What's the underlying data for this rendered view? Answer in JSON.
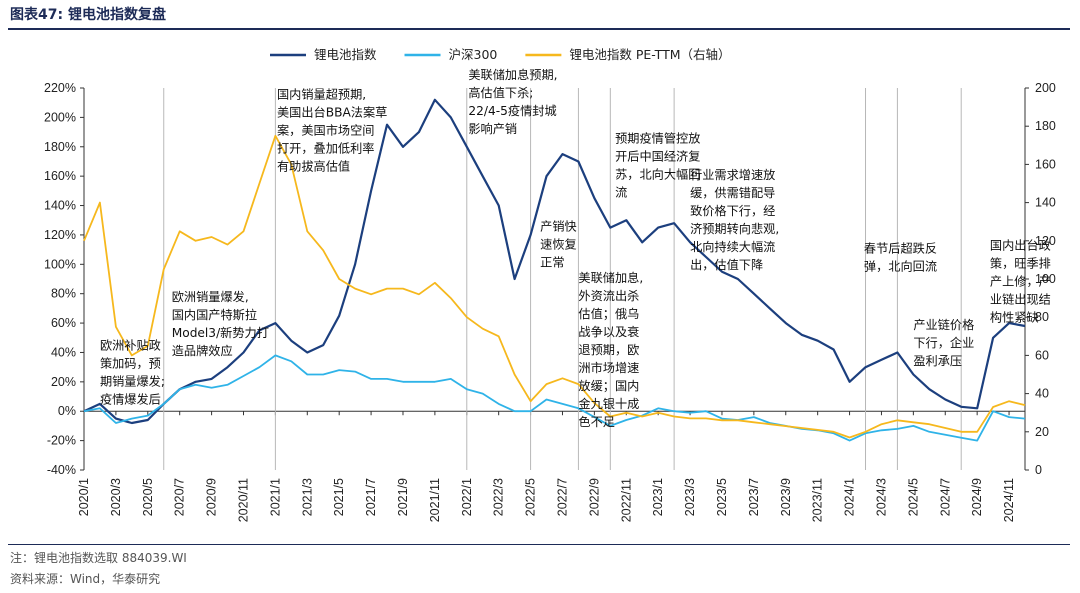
{
  "header": {
    "figure_title": "图表47:  锂电池指数复盘"
  },
  "footer": {
    "note": "注：锂电池指数选取 884039.WI",
    "source": "资料来源：Wind，华泰研究"
  },
  "colors": {
    "lithium": "#1c3f7e",
    "csi300": "#2fb3e8",
    "pe": "#f6b81d",
    "rule": "#1d2b57",
    "vline": "#b8b8b8"
  },
  "chart_data": {
    "type": "line",
    "x_ticks": [
      "2020/1",
      "2020/3",
      "2020/5",
      "2020/7",
      "2020/9",
      "2020/11",
      "2021/1",
      "2021/3",
      "2021/5",
      "2021/7",
      "2021/9",
      "2021/11",
      "2022/1",
      "2022/3",
      "2022/5",
      "2022/7",
      "2022/9",
      "2022/11",
      "2023/1",
      "2023/3",
      "2023/5",
      "2023/7",
      "2023/9",
      "2023/11",
      "2024/1",
      "2024/3",
      "2024/5",
      "2024/7",
      "2024/9",
      "2024/11"
    ],
    "xlim": [
      "2020/1",
      "2024/12"
    ],
    "y_left": {
      "ticks": [
        "220%",
        "200%",
        "180%",
        "160%",
        "140%",
        "120%",
        "100%",
        "80%",
        "60%",
        "40%",
        "20%",
        "0%",
        "-20%",
        "-40%"
      ],
      "range": [
        -40,
        220
      ]
    },
    "y_right": {
      "ticks": [
        "200",
        "180",
        "160",
        "140",
        "120",
        "100",
        "80",
        "60",
        "40",
        "20",
        "0"
      ],
      "range": [
        0,
        200
      ]
    },
    "event_lines": [
      "2020/6",
      "2021/1",
      "2022/1",
      "2022/5",
      "2022/8",
      "2022/10",
      "2023/2",
      "2024/2",
      "2024/4",
      "2024/8"
    ],
    "legend_position": "top",
    "series": [
      {
        "name": "锂电池指数",
        "axis": "left",
        "color": "#1c3f7e",
        "points": [
          [
            "2020/1",
            0
          ],
          [
            "2020/2",
            5
          ],
          [
            "2020/3",
            -5
          ],
          [
            "2020/4",
            -8
          ],
          [
            "2020/5",
            -6
          ],
          [
            "2020/6",
            5
          ],
          [
            "2020/7",
            15
          ],
          [
            "2020/8",
            20
          ],
          [
            "2020/9",
            22
          ],
          [
            "2020/10",
            30
          ],
          [
            "2020/11",
            40
          ],
          [
            "2020/12",
            55
          ],
          [
            "2021/1",
            60
          ],
          [
            "2021/2",
            48
          ],
          [
            "2021/3",
            40
          ],
          [
            "2021/4",
            45
          ],
          [
            "2021/5",
            65
          ],
          [
            "2021/6",
            100
          ],
          [
            "2021/7",
            150
          ],
          [
            "2021/8",
            195
          ],
          [
            "2021/9",
            180
          ],
          [
            "2021/10",
            190
          ],
          [
            "2021/11",
            212
          ],
          [
            "2021/12",
            200
          ],
          [
            "2022/1",
            180
          ],
          [
            "2022/2",
            160
          ],
          [
            "2022/3",
            140
          ],
          [
            "2022/4",
            90
          ],
          [
            "2022/5",
            120
          ],
          [
            "2022/6",
            160
          ],
          [
            "2022/7",
            175
          ],
          [
            "2022/8",
            170
          ],
          [
            "2022/9",
            145
          ],
          [
            "2022/10",
            125
          ],
          [
            "2022/11",
            130
          ],
          [
            "2022/12",
            115
          ],
          [
            "2023/1",
            125
          ],
          [
            "2023/2",
            128
          ],
          [
            "2023/3",
            115
          ],
          [
            "2023/4",
            105
          ],
          [
            "2023/5",
            95
          ],
          [
            "2023/6",
            90
          ],
          [
            "2023/7",
            80
          ],
          [
            "2023/8",
            70
          ],
          [
            "2023/9",
            60
          ],
          [
            "2023/10",
            52
          ],
          [
            "2023/11",
            48
          ],
          [
            "2023/12",
            42
          ],
          [
            "2024/1",
            20
          ],
          [
            "2024/2",
            30
          ],
          [
            "2024/3",
            35
          ],
          [
            "2024/4",
            40
          ],
          [
            "2024/5",
            25
          ],
          [
            "2024/6",
            15
          ],
          [
            "2024/7",
            8
          ],
          [
            "2024/8",
            3
          ],
          [
            "2024/9",
            2
          ],
          [
            "2024/10",
            50
          ],
          [
            "2024/11",
            60
          ],
          [
            "2024/12",
            58
          ]
        ]
      },
      {
        "name": "沪深300",
        "axis": "left",
        "color": "#2fb3e8",
        "points": [
          [
            "2020/1",
            0
          ],
          [
            "2020/2",
            2
          ],
          [
            "2020/3",
            -8
          ],
          [
            "2020/4",
            -5
          ],
          [
            "2020/5",
            -3
          ],
          [
            "2020/6",
            5
          ],
          [
            "2020/7",
            15
          ],
          [
            "2020/8",
            18
          ],
          [
            "2020/9",
            16
          ],
          [
            "2020/10",
            18
          ],
          [
            "2020/11",
            24
          ],
          [
            "2020/12",
            30
          ],
          [
            "2021/1",
            38
          ],
          [
            "2021/2",
            34
          ],
          [
            "2021/3",
            25
          ],
          [
            "2021/4",
            25
          ],
          [
            "2021/5",
            28
          ],
          [
            "2021/6",
            27
          ],
          [
            "2021/7",
            22
          ],
          [
            "2021/8",
            22
          ],
          [
            "2021/9",
            20
          ],
          [
            "2021/10",
            20
          ],
          [
            "2021/11",
            20
          ],
          [
            "2021/12",
            22
          ],
          [
            "2022/1",
            15
          ],
          [
            "2022/2",
            12
          ],
          [
            "2022/3",
            5
          ],
          [
            "2022/4",
            0
          ],
          [
            "2022/5",
            0
          ],
          [
            "2022/6",
            8
          ],
          [
            "2022/7",
            5
          ],
          [
            "2022/8",
            2
          ],
          [
            "2022/9",
            -4
          ],
          [
            "2022/10",
            -10
          ],
          [
            "2022/11",
            -6
          ],
          [
            "2022/12",
            -3
          ],
          [
            "2023/1",
            2
          ],
          [
            "2023/2",
            0
          ],
          [
            "2023/3",
            -1
          ],
          [
            "2023/4",
            0
          ],
          [
            "2023/5",
            -5
          ],
          [
            "2023/6",
            -6
          ],
          [
            "2023/7",
            -4
          ],
          [
            "2023/8",
            -8
          ],
          [
            "2023/9",
            -10
          ],
          [
            "2023/10",
            -12
          ],
          [
            "2023/11",
            -13
          ],
          [
            "2023/12",
            -15
          ],
          [
            "2024/1",
            -20
          ],
          [
            "2024/2",
            -15
          ],
          [
            "2024/3",
            -13
          ],
          [
            "2024/4",
            -12
          ],
          [
            "2024/5",
            -10
          ],
          [
            "2024/6",
            -14
          ],
          [
            "2024/7",
            -16
          ],
          [
            "2024/8",
            -18
          ],
          [
            "2024/9",
            -20
          ],
          [
            "2024/10",
            0
          ],
          [
            "2024/11",
            -4
          ],
          [
            "2024/12",
            -5
          ]
        ]
      },
      {
        "name": "锂电池指数 PE-TTM（右轴）",
        "axis": "right",
        "color": "#f6b81d",
        "points": [
          [
            "2020/1",
            120
          ],
          [
            "2020/2",
            140
          ],
          [
            "2020/3",
            75
          ],
          [
            "2020/4",
            60
          ],
          [
            "2020/5",
            65
          ],
          [
            "2020/6",
            105
          ],
          [
            "2020/7",
            125
          ],
          [
            "2020/8",
            120
          ],
          [
            "2020/9",
            122
          ],
          [
            "2020/10",
            118
          ],
          [
            "2020/11",
            125
          ],
          [
            "2020/12",
            150
          ],
          [
            "2021/1",
            175
          ],
          [
            "2021/2",
            160
          ],
          [
            "2021/3",
            125
          ],
          [
            "2021/4",
            115
          ],
          [
            "2021/5",
            100
          ],
          [
            "2021/6",
            95
          ],
          [
            "2021/7",
            92
          ],
          [
            "2021/8",
            95
          ],
          [
            "2021/9",
            95
          ],
          [
            "2021/10",
            92
          ],
          [
            "2021/11",
            98
          ],
          [
            "2021/12",
            90
          ],
          [
            "2022/1",
            80
          ],
          [
            "2022/2",
            74
          ],
          [
            "2022/3",
            70
          ],
          [
            "2022/4",
            50
          ],
          [
            "2022/5",
            36
          ],
          [
            "2022/6",
            45
          ],
          [
            "2022/7",
            48
          ],
          [
            "2022/8",
            45
          ],
          [
            "2022/9",
            35
          ],
          [
            "2022/10",
            28
          ],
          [
            "2022/11",
            30
          ],
          [
            "2022/12",
            28
          ],
          [
            "2023/1",
            30
          ],
          [
            "2023/2",
            28
          ],
          [
            "2023/3",
            27
          ],
          [
            "2023/4",
            27
          ],
          [
            "2023/5",
            26
          ],
          [
            "2023/6",
            26
          ],
          [
            "2023/7",
            25
          ],
          [
            "2023/8",
            24
          ],
          [
            "2023/9",
            23
          ],
          [
            "2023/10",
            22
          ],
          [
            "2023/11",
            21
          ],
          [
            "2023/12",
            20
          ],
          [
            "2024/1",
            17
          ],
          [
            "2024/2",
            20
          ],
          [
            "2024/3",
            24
          ],
          [
            "2024/4",
            26
          ],
          [
            "2024/5",
            25
          ],
          [
            "2024/6",
            24
          ],
          [
            "2024/7",
            22
          ],
          [
            "2024/8",
            20
          ],
          [
            "2024/9",
            20
          ],
          [
            "2024/10",
            33
          ],
          [
            "2024/11",
            36
          ],
          [
            "2024/12",
            34
          ]
        ]
      }
    ],
    "annotations": [
      {
        "lines": [
          "欧洲补贴政",
          "策加码，预",
          "期销量爆发;",
          "疫情爆发后"
        ],
        "at": [
          "2020/2",
          42
        ]
      },
      {
        "lines": [
          "欧洲销量爆发,",
          "国内国产特斯拉",
          "Model3/新势力打",
          "造品牌效应"
        ],
        "at": [
          "2020/6.5",
          75
        ]
      },
      {
        "lines": [
          "国内销量超预期,",
          "美国出台BBA法案草",
          "案，美国市场空间",
          "打开，叠加低利率",
          "有助拔高估值"
        ],
        "at": [
          "2021/1.1",
          213
        ]
      },
      {
        "lines": [
          "美联储加息预期,",
          "高估值下杀;",
          "22/4-5疫情封城",
          "影响产销"
        ],
        "at": [
          "2022/1.1",
          226
        ]
      },
      {
        "lines": [
          "产销快",
          "速恢复",
          "正常"
        ],
        "at": [
          "2022/5.6",
          123
        ]
      },
      {
        "lines": [
          "预期疫情管控放",
          "开后中国经济复",
          "苏，北向大幅回",
          "流"
        ],
        "at": [
          "2022/10.3",
          183
        ]
      },
      {
        "lines": [
          "美联储加息,",
          "外资流出杀",
          "估值；俄乌",
          "战争以及衰",
          "退预期，欧",
          "洲市场增速",
          "放缓；国内",
          "金九银十成",
          "色不足"
        ],
        "at": [
          "2022/8",
          88
        ]
      },
      {
        "lines": [
          "行业需求增速放",
          "缓，供需错配导",
          "致价格下行，经",
          "济预期转向悲观,",
          "北向持续大幅流",
          "出，估值下降"
        ],
        "at": [
          "2023/3",
          158
        ]
      },
      {
        "lines": [
          "春节后超跌反",
          "弹，北向回流"
        ],
        "at": [
          "2024/1.9",
          108
        ]
      },
      {
        "lines": [
          "产业链价格",
          "下行，企业",
          "盈利承压"
        ],
        "at": [
          "2024/5",
          56
        ]
      },
      {
        "lines": [
          "国内出台政",
          "策，旺季排",
          "产上修，产",
          "业链出现结",
          "构性紧缺"
        ],
        "at": [
          "2024/9.8",
          110
        ]
      }
    ]
  }
}
